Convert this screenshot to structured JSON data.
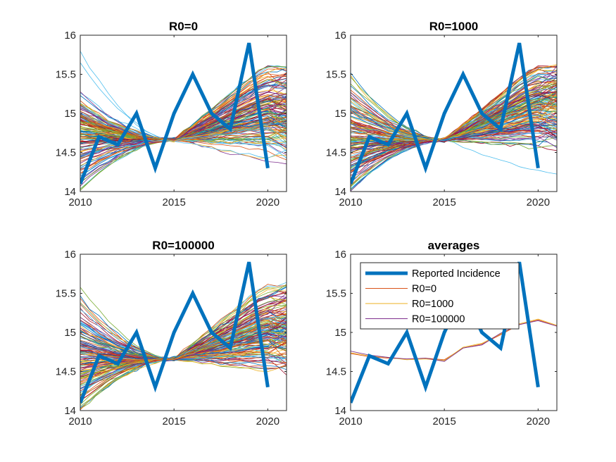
{
  "chart_data": [
    {
      "type": "line",
      "title": "R0=0",
      "xlim": [
        2010,
        2021
      ],
      "ylim": [
        14,
        16
      ],
      "xticks": [
        "2010",
        "2015",
        "2020"
      ],
      "yticks": [
        "14",
        "14.5",
        "15",
        "15.5",
        "16"
      ],
      "num_simulation_lines": 150,
      "reported_incidence": {
        "name": "Reported Incidence",
        "color": "#0072BD",
        "x": [
          2010,
          2011,
          2012,
          2013,
          2014,
          2015,
          2016,
          2017,
          2018,
          2019,
          2020
        ],
        "y": [
          14.1,
          14.7,
          14.6,
          15.0,
          14.3,
          15.0,
          15.5,
          15.0,
          14.8,
          15.9,
          14.3
        ]
      }
    },
    {
      "type": "line",
      "title": "R0=1000",
      "xlim": [
        2010,
        2021
      ],
      "ylim": [
        14,
        16
      ],
      "xticks": [
        "2010",
        "2015",
        "2020"
      ],
      "yticks": [
        "14",
        "14.5",
        "15",
        "15.5",
        "16"
      ],
      "num_simulation_lines": 150,
      "reported_incidence": {
        "name": "Reported Incidence",
        "color": "#0072BD",
        "x": [
          2010,
          2011,
          2012,
          2013,
          2014,
          2015,
          2016,
          2017,
          2018,
          2019,
          2020
        ],
        "y": [
          14.1,
          14.7,
          14.6,
          15.0,
          14.3,
          15.0,
          15.5,
          15.0,
          14.8,
          15.9,
          14.3
        ]
      }
    },
    {
      "type": "line",
      "title": "R0=100000",
      "xlim": [
        2010,
        2021
      ],
      "ylim": [
        14,
        16
      ],
      "xticks": [
        "2010",
        "2015",
        "2020"
      ],
      "yticks": [
        "14",
        "14.5",
        "15",
        "15.5",
        "16"
      ],
      "num_simulation_lines": 150,
      "reported_incidence": {
        "name": "Reported Incidence",
        "color": "#0072BD",
        "x": [
          2010,
          2011,
          2012,
          2013,
          2014,
          2015,
          2016,
          2017,
          2018,
          2019,
          2020
        ],
        "y": [
          14.1,
          14.7,
          14.6,
          15.0,
          14.3,
          15.0,
          15.5,
          15.0,
          14.8,
          15.9,
          14.3
        ]
      }
    },
    {
      "type": "line",
      "title": "averages",
      "xlim": [
        2010,
        2021
      ],
      "ylim": [
        14,
        16
      ],
      "xticks": [
        "2010",
        "2015",
        "2020"
      ],
      "yticks": [
        "14",
        "14.5",
        "15",
        "15.5",
        "16"
      ],
      "legend_position": "top-left",
      "x": [
        2010,
        2011,
        2012,
        2013,
        2014,
        2015,
        2016,
        2017,
        2018,
        2019,
        2020,
        2021
      ],
      "series": [
        {
          "name": "Reported Incidence",
          "color": "#0072BD",
          "x": [
            2010,
            2011,
            2012,
            2013,
            2014,
            2015,
            2016,
            2017,
            2018,
            2019,
            2020
          ],
          "values": [
            14.1,
            14.7,
            14.6,
            15.0,
            14.3,
            15.0,
            15.5,
            15.0,
            14.8,
            15.9,
            14.3
          ]
        },
        {
          "name": "R0=0",
          "color": "#D95319",
          "values": [
            14.73,
            14.69,
            14.67,
            14.66,
            14.67,
            14.65,
            14.8,
            14.85,
            14.97,
            15.1,
            15.16,
            15.08
          ]
        },
        {
          "name": "R0=1000",
          "color": "#EDB120",
          "values": [
            14.74,
            14.7,
            14.68,
            14.65,
            14.66,
            14.64,
            14.81,
            14.86,
            14.98,
            15.11,
            15.17,
            15.09
          ]
        },
        {
          "name": "R0=100000",
          "color": "#7E2F8E",
          "values": [
            14.76,
            14.71,
            14.68,
            14.66,
            14.67,
            14.63,
            14.8,
            14.84,
            14.99,
            15.1,
            15.15,
            15.08
          ]
        }
      ]
    }
  ]
}
